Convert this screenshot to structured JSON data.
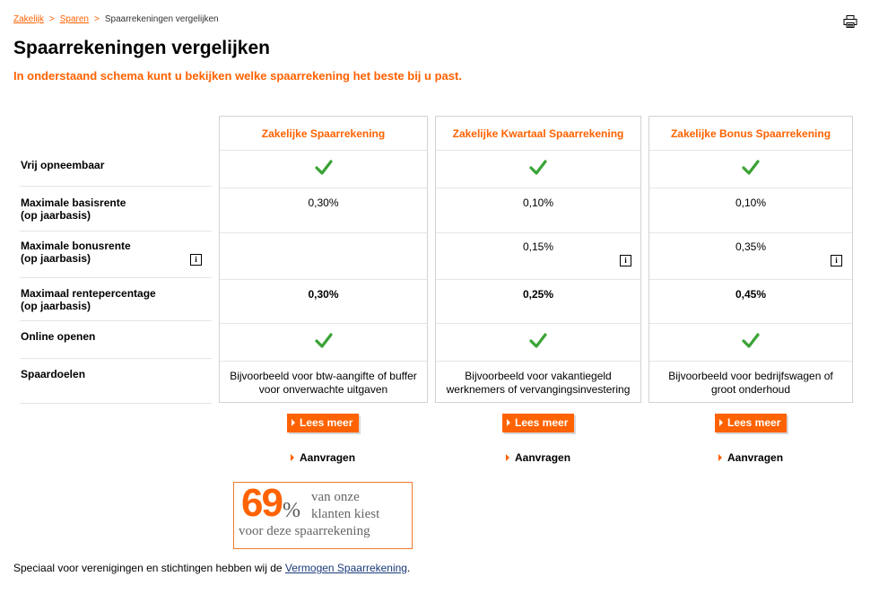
{
  "breadcrumb": {
    "items": [
      "Zakelijk",
      "Sparen"
    ],
    "separator": ">",
    "current": "Spaarrekeningen vergelijken"
  },
  "page": {
    "title": "Spaarrekeningen vergelijken",
    "intro": "In onderstaand schema kunt u bekijken welke spaarrekening het beste bij u past."
  },
  "rows": [
    {
      "line1": "Vrij opneembaar",
      "line2": ""
    },
    {
      "line1": "Maximale basisrente",
      "line2": "(op jaarbasis)"
    },
    {
      "line1": "Maximale bonusrente",
      "line2": "(op jaarbasis)"
    },
    {
      "line1": "Maximaal rentepercentage",
      "line2": "(op jaarbasis)"
    },
    {
      "line1": "Online openen",
      "line2": ""
    },
    {
      "line1": "Spaardoelen",
      "line2": ""
    }
  ],
  "info_glyph": "i",
  "products": [
    {
      "name": "Zakelijke Spaarrekening",
      "basisrente": "0,30%",
      "bonusrente": "",
      "maximaal": "0,30%",
      "doel_line1": "Bijvoorbeeld voor btw-aangifte of buffer",
      "doel_line2": "voor onverwachte uitgaven"
    },
    {
      "name": "Zakelijke Kwartaal Spaarrekening",
      "basisrente": "0,10%",
      "bonusrente": "0,15%",
      "maximaal": "0,25%",
      "doel_line1": "Bijvoorbeeld voor vakantiegeld",
      "doel_line2": "werknemers of vervangingsinvestering"
    },
    {
      "name": "Zakelijke Bonus Spaarrekening",
      "basisrente": "0,10%",
      "bonusrente": "0,35%",
      "maximaal": "0,45%",
      "doel_line1": "Bijvoorbeeld voor bedrijfswagen of",
      "doel_line2": "groot onderhoud"
    }
  ],
  "buttons": {
    "lees_meer": "Lees meer",
    "aanvragen": "Aanvragen"
  },
  "promo": {
    "number": "69",
    "percent_sign": "%",
    "line1": "van onze",
    "line2": "klanten kiest",
    "line3": "voor deze spaarrekening"
  },
  "footnote": {
    "text": "Speciaal voor verenigingen en stichtingen hebben wij de",
    "link": "Vermogen Spaarrekening",
    "end": "."
  },
  "colors": {
    "accent": "#ff6200",
    "check": "#3aa335",
    "border": "#d3d3d3"
  },
  "icons": [
    "print-icon",
    "check-icon",
    "info-icon",
    "arrow-right-icon"
  ]
}
